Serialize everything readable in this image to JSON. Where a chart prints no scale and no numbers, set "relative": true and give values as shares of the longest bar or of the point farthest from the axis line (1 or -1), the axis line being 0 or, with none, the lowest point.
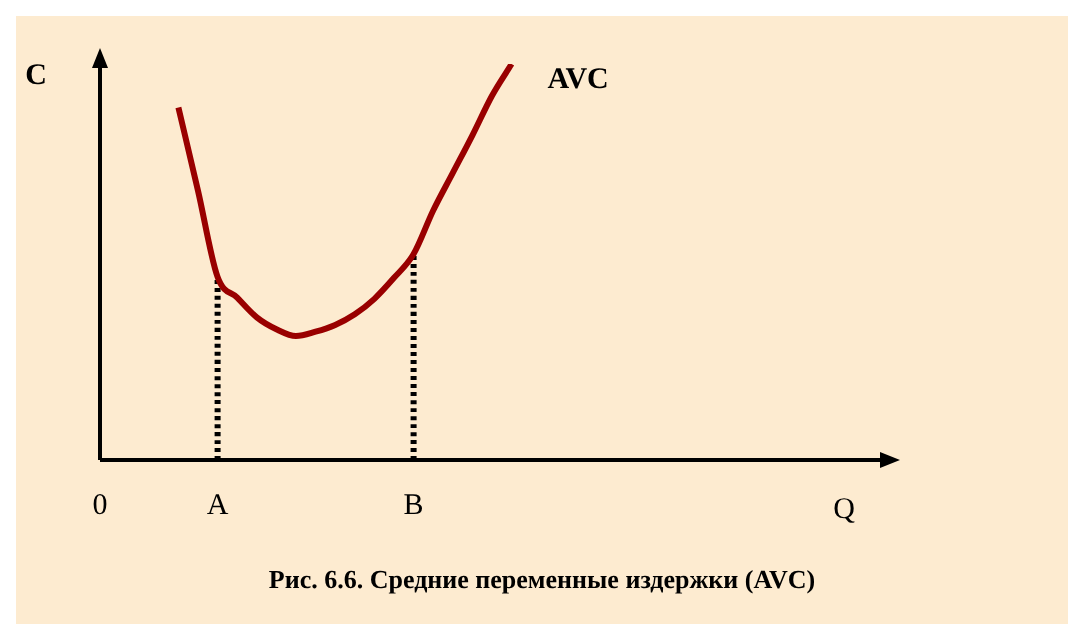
{
  "chart_data": {
    "type": "line",
    "title": "Рис. 6.6. Средние переменные издержки (AVC)",
    "xlabel": "Q",
    "ylabel": "C",
    "relative": true,
    "marker": "none",
    "categories": [
      "0",
      null,
      null,
      null,
      null,
      null,
      "A",
      null,
      null,
      null,
      null,
      null,
      null,
      null,
      null,
      null,
      "B",
      null,
      null,
      null,
      null,
      null,
      null,
      null,
      null,
      null,
      null,
      null,
      null,
      null,
      null,
      null,
      null,
      null,
      null,
      null,
      null,
      null,
      null,
      null,
      null
    ],
    "series": [
      {
        "name": "AVC",
        "color": "#990000",
        "values": [
          null,
          null,
          null,
          null,
          0.89,
          0.68,
          0.462,
          0.41,
          0.36,
          0.33,
          0.313,
          0.324,
          0.341,
          0.368,
          0.407,
          0.46,
          0.52,
          0.63,
          0.725,
          0.82,
          0.92,
          1,
          null,
          null,
          null,
          null,
          null,
          null,
          null,
          null,
          null,
          null,
          null,
          null,
          null,
          null,
          null,
          null,
          null,
          null,
          null
        ]
      },
      {
        "type": "line",
        "color": "#000000",
        "line_style": "dotted",
        "x": [
          "A",
          "A"
        ],
        "values": [
          0,
          0.462
        ]
      },
      {
        "type": "line",
        "color": "#000000",
        "line_style": "dotted",
        "x": [
          "B",
          "B"
        ],
        "values": [
          0,
          0.52
        ]
      }
    ]
  }
}
